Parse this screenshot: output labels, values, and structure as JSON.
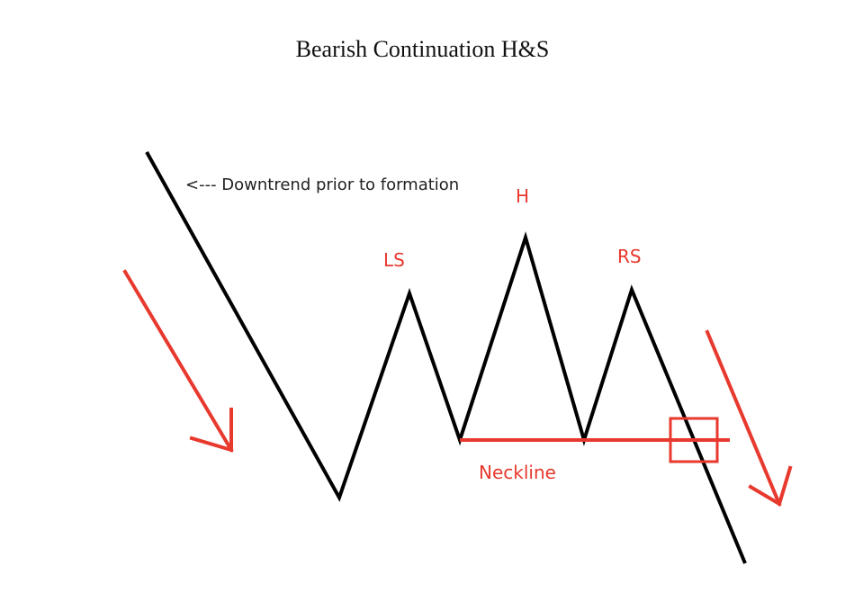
{
  "title": "Bearish Continuation H&S",
  "annotation": "<--- Downtrend prior to formation",
  "labels": {
    "left_shoulder": "LS",
    "head": "H",
    "right_shoulder": "RS",
    "neckline": "Neckline"
  },
  "colors": {
    "price_line": "#000000",
    "accent": "#e8392e",
    "text": "#222222"
  },
  "icons": [
    "arrow-down-right-icon",
    "breakout-box-icon"
  ]
}
